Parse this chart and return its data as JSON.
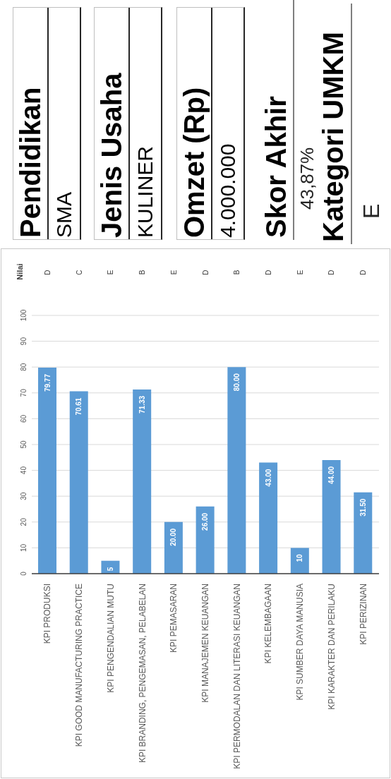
{
  "chart_data": [
    {
      "type": "bar",
      "categories": [
        "KPI PRODUKSI",
        "KPI GOOD MANUFACTURING PRACTICE",
        "KPI PENGENDALIAN MUTU",
        "KPI BRANDING, PENGEMASAN, PELABELAN",
        "KPI PEMASARAN",
        "KPI MANAJEMEN KEUANGAN",
        "KPI PERMODALAN DAN LITERASI KEUANGAN",
        "KPI KELEMBAGAAN",
        "KPI SUMBER DAYA MANUSIA",
        "KPI KARAKTER DAN PERILAKU",
        "KPI PERIZINAN"
      ],
      "values": [
        79.77,
        70.61,
        5,
        71.33,
        20,
        26,
        80,
        43,
        10,
        44,
        31.5
      ],
      "value_labels": [
        "79.77",
        "70.61",
        "5",
        "71.33",
        "20.00",
        "26.00",
        "80.00",
        "43.00",
        "10",
        "44.00",
        "31.50"
      ],
      "color": "#5b9bd5",
      "ylim": [
        0,
        100
      ],
      "yticks": [
        0,
        10,
        20,
        30,
        40,
        50,
        60,
        70,
        80,
        90,
        100
      ],
      "grid": "y",
      "x2label": "Nilai",
      "annotations": [
        "D",
        "C",
        "E",
        "B",
        "E",
        "D",
        "B",
        "D",
        "E",
        "D",
        "D"
      ]
    },
    {
      "type": "other",
      "title": "Pendidikan",
      "annotations": [
        "SMA"
      ]
    },
    {
      "type": "other",
      "title": "Jenis Usaha",
      "annotations": [
        "KULINER"
      ]
    },
    {
      "type": "other",
      "title": "Omzet (Rp)",
      "annotations": [
        "4.000.000"
      ]
    },
    {
      "type": "other",
      "title": "Skor Akhir",
      "annotations": [
        "43,87%"
      ]
    },
    {
      "type": "other",
      "title": "Kategori UMKM",
      "annotations": [
        "E"
      ]
    }
  ]
}
